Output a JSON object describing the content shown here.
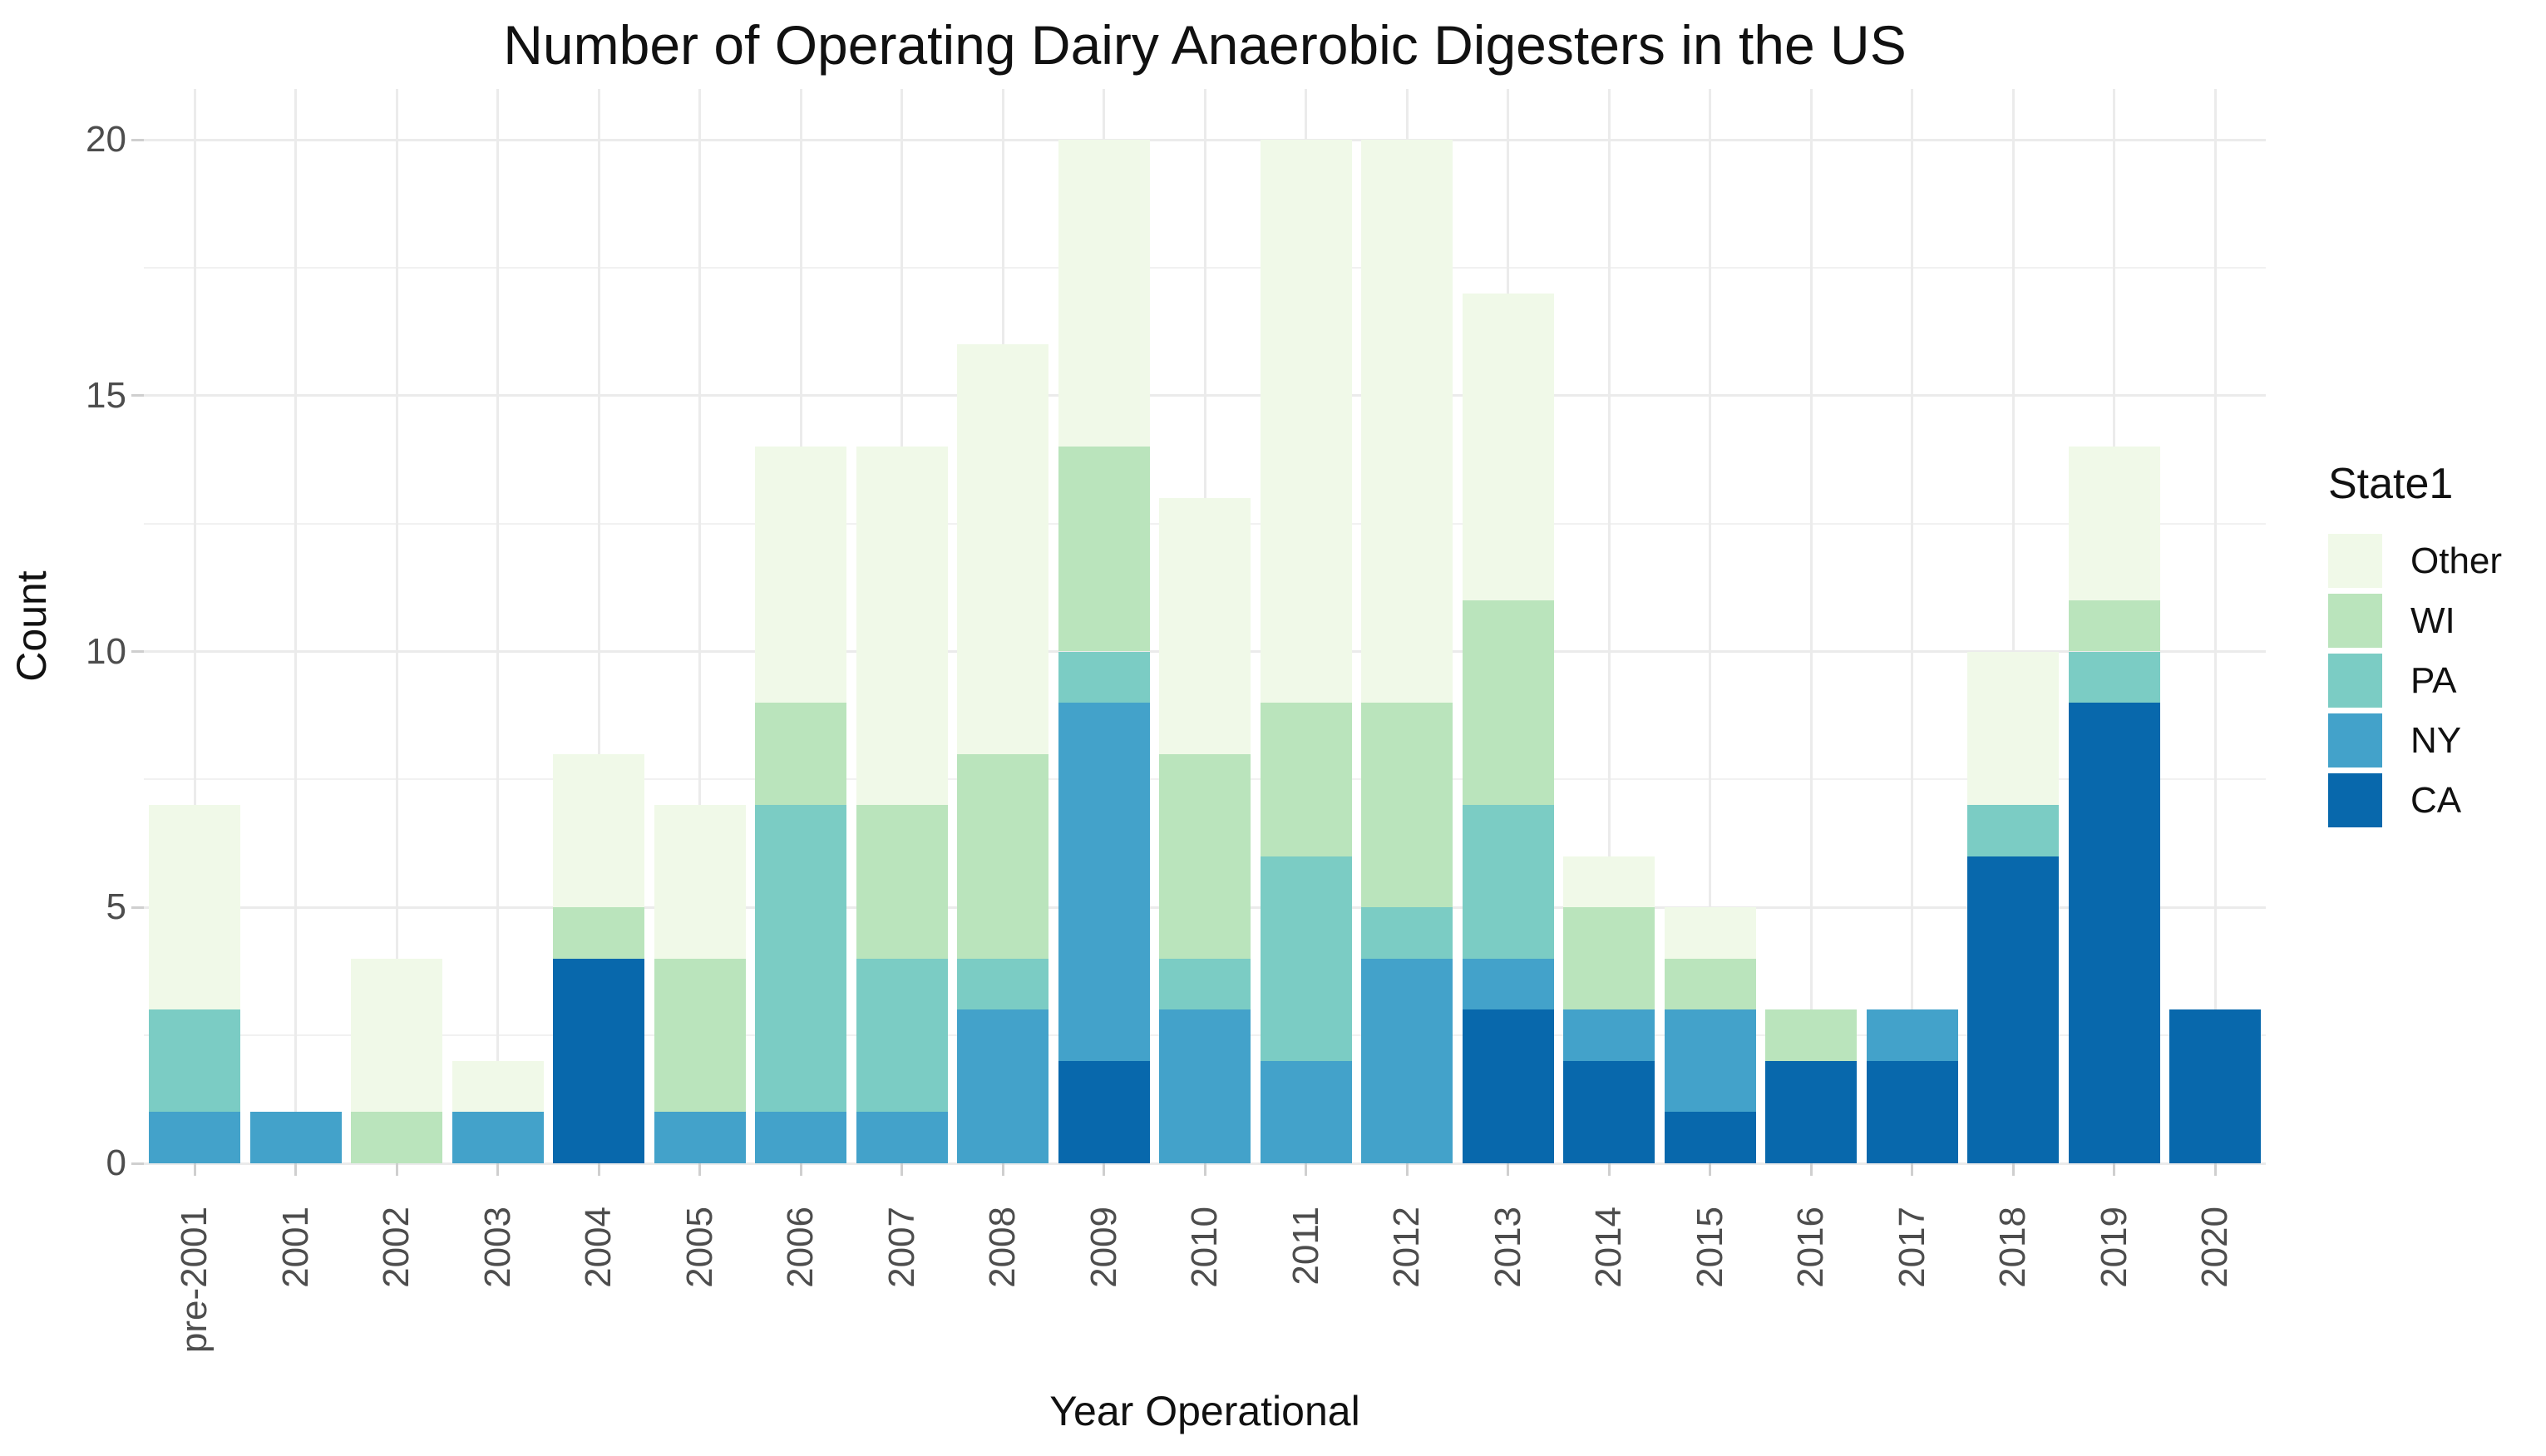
{
  "chart_data": {
    "type": "bar",
    "stacked": true,
    "title": "Number of Operating Dairy Anaerobic Digesters in the US",
    "xlabel": "Year Operational",
    "ylabel": "Count",
    "ylim": [
      0,
      20
    ],
    "y_major_ticks": [
      0,
      5,
      10,
      15,
      20
    ],
    "y_minor_gridlines": [
      2.5,
      7.5,
      12.5,
      17.5
    ],
    "grid": true,
    "legend_title": "State1",
    "legend_position": "right",
    "legend_order_top_to_bottom": [
      "Other",
      "WI",
      "PA",
      "NY",
      "CA"
    ],
    "categories": [
      "pre-2001",
      "2001",
      "2002",
      "2003",
      "2004",
      "2005",
      "2006",
      "2007",
      "2008",
      "2009",
      "2010",
      "2011",
      "2012",
      "2013",
      "2014",
      "2015",
      "2016",
      "2017",
      "2018",
      "2019",
      "2020"
    ],
    "series": [
      {
        "name": "CA",
        "color": "#0868AC",
        "values": [
          0,
          0,
          0,
          0,
          4,
          0,
          0,
          0,
          0,
          2,
          0,
          0,
          0,
          3,
          2,
          1,
          2,
          2,
          6,
          9,
          3
        ]
      },
      {
        "name": "NY",
        "color": "#43A2CA",
        "values": [
          1,
          1,
          0,
          1,
          0,
          1,
          1,
          1,
          3,
          7,
          3,
          2,
          4,
          1,
          1,
          2,
          0,
          1,
          0,
          0,
          0
        ]
      },
      {
        "name": "PA",
        "color": "#7BCCC4",
        "values": [
          2,
          0,
          0,
          0,
          0,
          0,
          6,
          3,
          1,
          1,
          1,
          4,
          1,
          3,
          0,
          0,
          0,
          0,
          1,
          1,
          0
        ]
      },
      {
        "name": "WI",
        "color": "#BAE4BC",
        "values": [
          0,
          0,
          1,
          0,
          1,
          3,
          2,
          3,
          4,
          4,
          4,
          3,
          4,
          4,
          2,
          1,
          1,
          0,
          0,
          1,
          0
        ]
      },
      {
        "name": "Other",
        "color": "#F0F9E8",
        "values": [
          4,
          0,
          3,
          1,
          3,
          3,
          5,
          7,
          8,
          6,
          5,
          11,
          11,
          6,
          1,
          1,
          0,
          0,
          3,
          3,
          0
        ]
      }
    ],
    "totals": [
      7,
      1,
      4,
      2,
      8,
      7,
      14,
      14,
      16,
      20,
      13,
      20,
      20,
      17,
      6,
      5,
      3,
      3,
      10,
      14,
      3
    ]
  }
}
